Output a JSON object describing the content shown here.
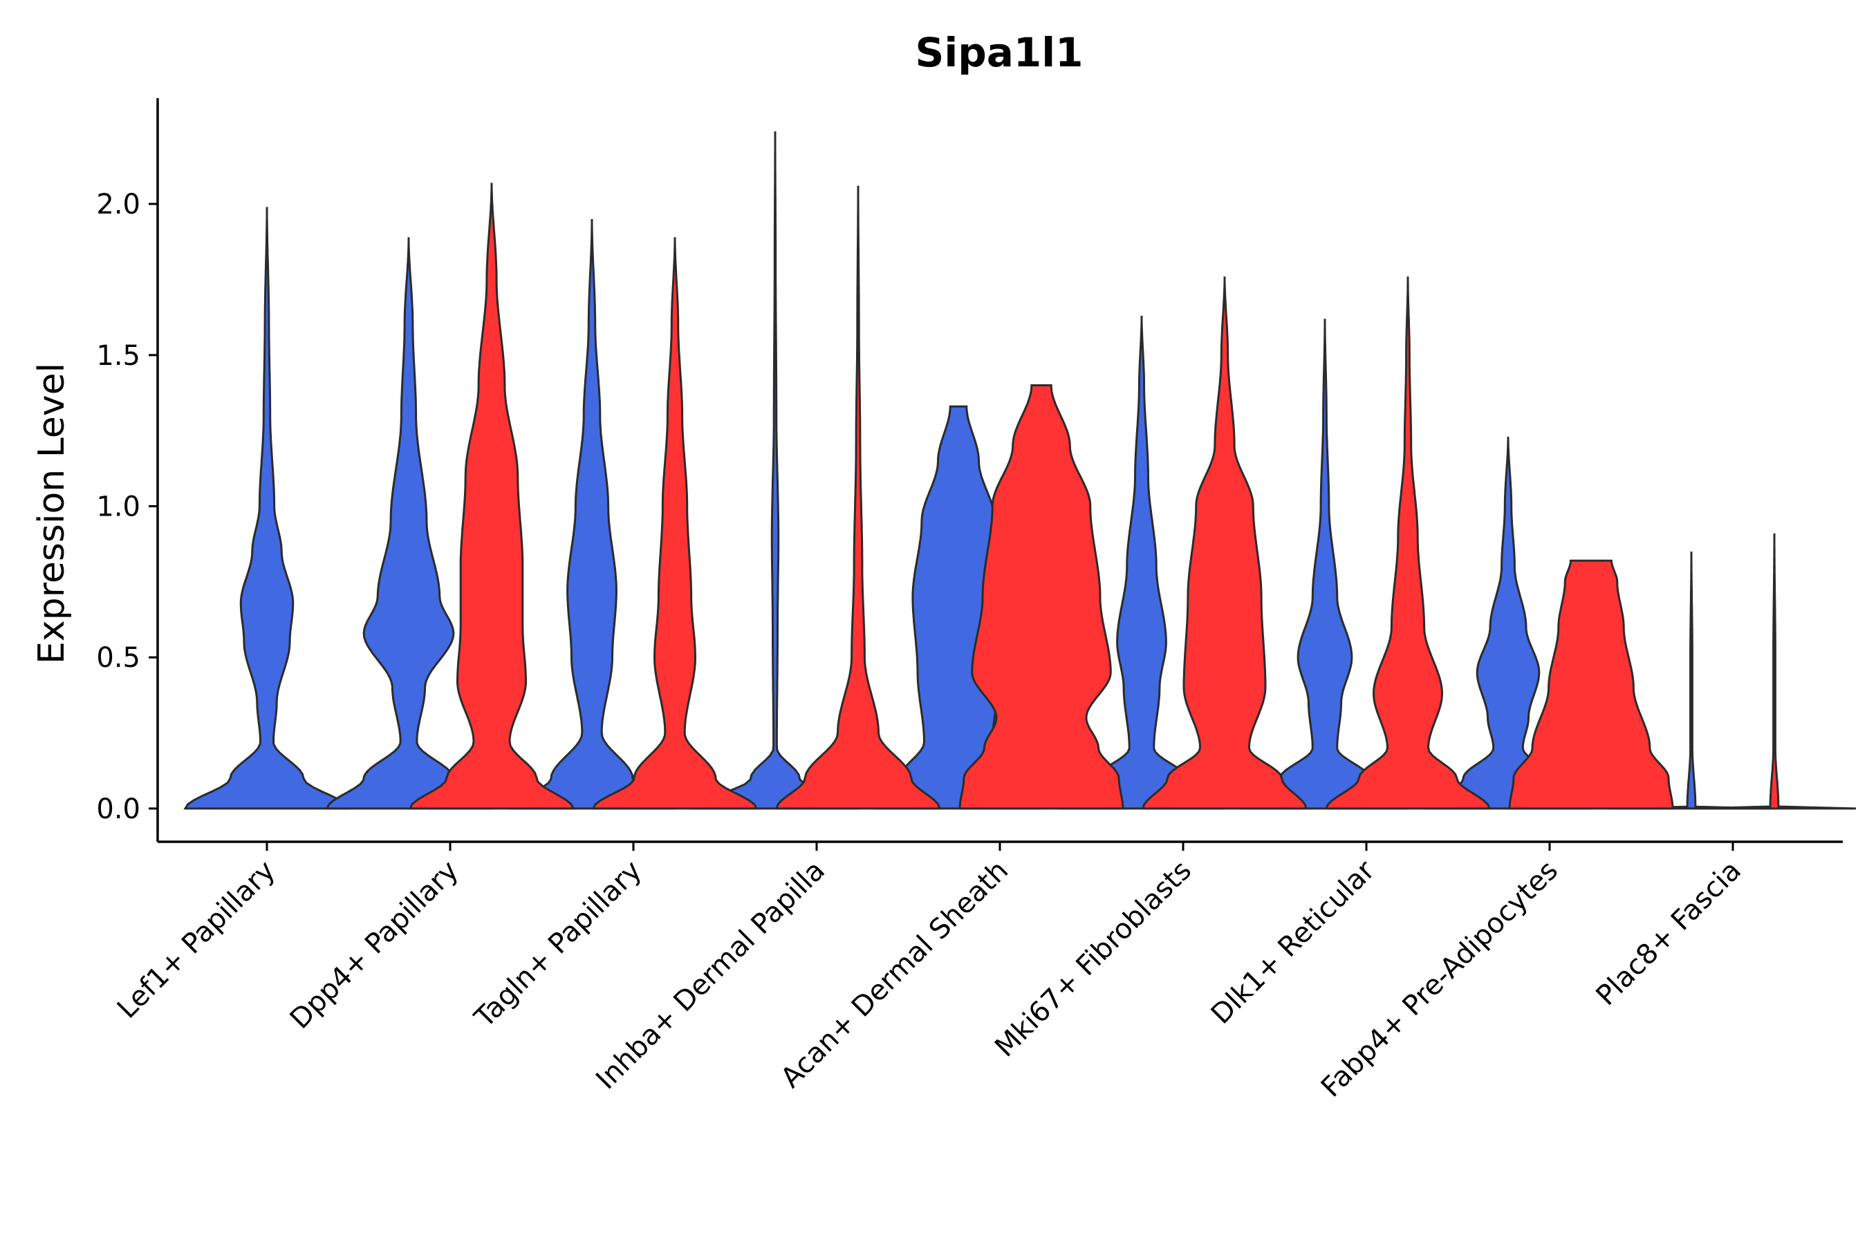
{
  "chart_data": {
    "type": "violin",
    "title": "Sipa1l1",
    "xlabel": "",
    "ylabel": "Expression Level",
    "ylim": [
      -0.11,
      2.35
    ],
    "yticks": [
      0.0,
      0.5,
      1.0,
      1.5,
      2.0
    ],
    "ytick_labels": [
      "0.0",
      "0.5",
      "1.0",
      "1.5",
      "2.0"
    ],
    "categories": [
      "Lef1+ Papillary",
      "Dpp4+ Papillary",
      "Tagln+ Papillary",
      "Inhba+ Dermal Papilla",
      "Acan+ Dermal Sheath",
      "Mki67+ Fibroblasts",
      "Dlk1+ Reticular",
      "Fabp4+ Pre-Adipocytes",
      "Plac8+ Fascia"
    ],
    "series": [
      {
        "name": "blue group",
        "color": "#4169E1",
        "violins": [
          {
            "category": "Lef1+ Papillary",
            "max": 1.99,
            "profile": [
              [
                0.0,
                1.0
              ],
              [
                0.1,
                0.45
              ],
              [
                0.22,
                0.08
              ],
              [
                0.35,
                0.12
              ],
              [
                0.55,
                0.28
              ],
              [
                0.68,
                0.32
              ],
              [
                0.85,
                0.18
              ],
              [
                1.0,
                0.09
              ],
              [
                1.3,
                0.04
              ],
              [
                1.6,
                0.025
              ],
              [
                1.99,
                0.0
              ]
            ]
          },
          {
            "category": "Dpp4+ Papillary",
            "max": 1.89,
            "profile": [
              [
                0.0,
                1.0
              ],
              [
                0.1,
                0.55
              ],
              [
                0.22,
                0.1
              ],
              [
                0.4,
                0.2
              ],
              [
                0.58,
                0.55
              ],
              [
                0.7,
                0.38
              ],
              [
                0.95,
                0.22
              ],
              [
                1.3,
                0.09
              ],
              [
                1.6,
                0.05
              ],
              [
                1.89,
                0.0
              ]
            ]
          },
          {
            "category": "Tagln+ Papillary",
            "max": 1.95,
            "profile": [
              [
                0.0,
                1.0
              ],
              [
                0.1,
                0.5
              ],
              [
                0.25,
                0.12
              ],
              [
                0.5,
                0.25
              ],
              [
                0.72,
                0.3
              ],
              [
                1.0,
                0.2
              ],
              [
                1.3,
                0.1
              ],
              [
                1.6,
                0.04
              ],
              [
                1.95,
                0.0
              ]
            ]
          },
          {
            "category": "Inhba+ Dermal Papilla",
            "max": 2.24,
            "profile": [
              [
                0.0,
                1.0
              ],
              [
                0.1,
                0.3
              ],
              [
                0.2,
                0.02
              ],
              [
                0.6,
                0.03
              ],
              [
                0.9,
                0.04
              ],
              [
                1.3,
                0.015
              ],
              [
                1.8,
                0.006
              ],
              [
                2.24,
                0.0
              ]
            ]
          },
          {
            "category": "Acan+ Dermal Sheath",
            "max": 1.33,
            "profile": [
              [
                0.0,
                1.0
              ],
              [
                0.1,
                0.72
              ],
              [
                0.22,
                0.42
              ],
              [
                0.45,
                0.5
              ],
              [
                0.7,
                0.56
              ],
              [
                0.95,
                0.45
              ],
              [
                1.15,
                0.25
              ],
              [
                1.33,
                0.1
              ]
            ]
          },
          {
            "category": "Mki67+ Fibroblasts",
            "max": 1.63,
            "profile": [
              [
                0.0,
                1.0
              ],
              [
                0.1,
                0.55
              ],
              [
                0.2,
                0.15
              ],
              [
                0.4,
                0.22
              ],
              [
                0.55,
                0.3
              ],
              [
                0.8,
                0.18
              ],
              [
                1.1,
                0.08
              ],
              [
                1.4,
                0.03
              ],
              [
                1.63,
                0.0
              ]
            ]
          },
          {
            "category": "Dlk1+ Reticular",
            "max": 1.62,
            "profile": [
              [
                0.0,
                1.0
              ],
              [
                0.1,
                0.55
              ],
              [
                0.2,
                0.15
              ],
              [
                0.35,
                0.2
              ],
              [
                0.5,
                0.33
              ],
              [
                0.7,
                0.15
              ],
              [
                1.0,
                0.05
              ],
              [
                1.3,
                0.02
              ],
              [
                1.62,
                0.0
              ]
            ]
          },
          {
            "category": "Fabp4+ Pre-Adipocytes",
            "max": 1.23,
            "profile": [
              [
                0.0,
                1.0
              ],
              [
                0.1,
                0.55
              ],
              [
                0.2,
                0.18
              ],
              [
                0.3,
                0.25
              ],
              [
                0.45,
                0.38
              ],
              [
                0.6,
                0.22
              ],
              [
                0.8,
                0.08
              ],
              [
                1.0,
                0.04
              ],
              [
                1.23,
                0.0
              ]
            ]
          },
          {
            "category": "Plac8+ Fascia",
            "max": 0.85,
            "profile": [
              [
                0.0,
                1.0
              ],
              [
                0.005,
                0.05
              ],
              [
                0.2,
                0.012
              ],
              [
                0.5,
                0.012
              ],
              [
                0.85,
                0.0
              ]
            ]
          }
        ]
      },
      {
        "name": "red group",
        "color": "#FF3333",
        "violins": [
          {
            "category": "Dpp4+ Papillary",
            "max": 2.07,
            "profile": [
              [
                0.0,
                1.0
              ],
              [
                0.1,
                0.55
              ],
              [
                0.22,
                0.22
              ],
              [
                0.42,
                0.42
              ],
              [
                0.6,
                0.38
              ],
              [
                0.8,
                0.38
              ],
              [
                1.1,
                0.32
              ],
              [
                1.4,
                0.16
              ],
              [
                1.75,
                0.06
              ],
              [
                2.07,
                0.0
              ]
            ]
          },
          {
            "category": "Tagln+ Papillary",
            "max": 1.89,
            "profile": [
              [
                0.0,
                1.0
              ],
              [
                0.1,
                0.5
              ],
              [
                0.25,
                0.12
              ],
              [
                0.5,
                0.25
              ],
              [
                0.7,
                0.2
              ],
              [
                1.0,
                0.15
              ],
              [
                1.3,
                0.09
              ],
              [
                1.6,
                0.04
              ],
              [
                1.89,
                0.0
              ]
            ]
          },
          {
            "category": "Inhba+ Dermal Papilla",
            "max": 2.06,
            "profile": [
              [
                0.0,
                1.0
              ],
              [
                0.1,
                0.65
              ],
              [
                0.25,
                0.25
              ],
              [
                0.5,
                0.08
              ],
              [
                0.8,
                0.05
              ],
              [
                1.2,
                0.025
              ],
              [
                1.6,
                0.01
              ],
              [
                2.06,
                0.0
              ]
            ]
          },
          {
            "category": "Acan+ Dermal Sheath",
            "max": 1.4,
            "profile": [
              [
                0.0,
                1.0
              ],
              [
                0.1,
                0.95
              ],
              [
                0.2,
                0.7
              ],
              [
                0.3,
                0.55
              ],
              [
                0.45,
                0.85
              ],
              [
                0.7,
                0.72
              ],
              [
                1.0,
                0.6
              ],
              [
                1.2,
                0.35
              ],
              [
                1.4,
                0.12
              ]
            ]
          },
          {
            "category": "Mki67+ Fibroblasts",
            "max": 1.76,
            "profile": [
              [
                0.0,
                1.0
              ],
              [
                0.1,
                0.7
              ],
              [
                0.2,
                0.3
              ],
              [
                0.4,
                0.5
              ],
              [
                0.7,
                0.45
              ],
              [
                1.0,
                0.35
              ],
              [
                1.2,
                0.12
              ],
              [
                1.5,
                0.04
              ],
              [
                1.76,
                0.0
              ]
            ]
          },
          {
            "category": "Dlk1+ Reticular",
            "max": 1.76,
            "profile": [
              [
                0.0,
                1.0
              ],
              [
                0.1,
                0.6
              ],
              [
                0.2,
                0.25
              ],
              [
                0.38,
                0.42
              ],
              [
                0.6,
                0.2
              ],
              [
                0.9,
                0.12
              ],
              [
                1.2,
                0.04
              ],
              [
                1.5,
                0.02
              ],
              [
                1.76,
                0.0
              ]
            ]
          },
          {
            "category": "Fabp4+ Pre-Adipocytes",
            "max": 0.82,
            "profile": [
              [
                0.0,
                1.0
              ],
              [
                0.1,
                0.95
              ],
              [
                0.2,
                0.72
              ],
              [
                0.4,
                0.52
              ],
              [
                0.6,
                0.4
              ],
              [
                0.75,
                0.32
              ],
              [
                0.82,
                0.25
              ]
            ]
          },
          {
            "category": "Plac8+ Fascia",
            "max": 0.91,
            "profile": [
              [
                0.0,
                1.0
              ],
              [
                0.005,
                0.05
              ],
              [
                0.2,
                0.012
              ],
              [
                0.5,
                0.012
              ],
              [
                0.91,
                0.0
              ]
            ]
          }
        ]
      }
    ]
  }
}
